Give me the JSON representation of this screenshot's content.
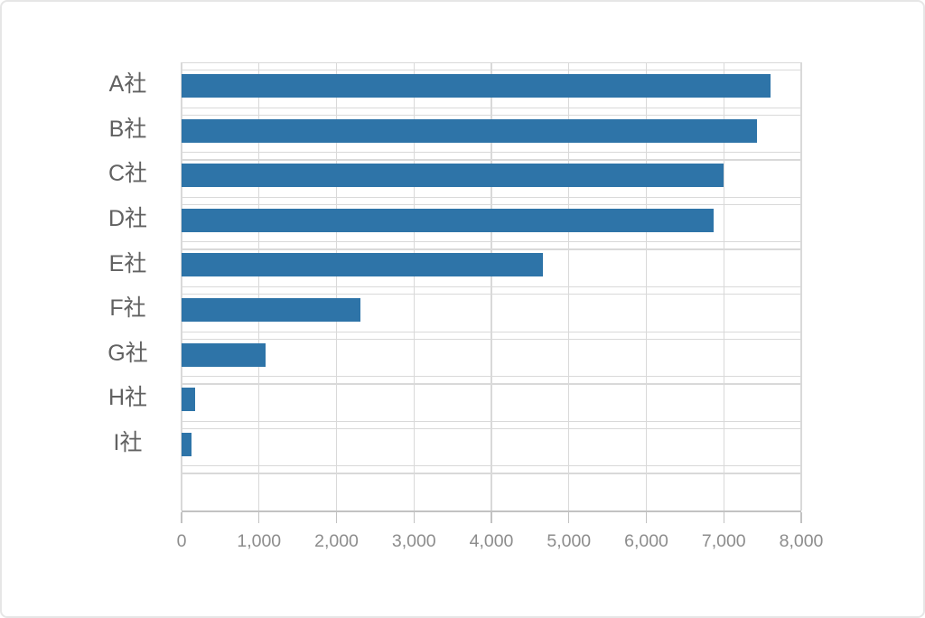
{
  "chart_data": {
    "type": "bar",
    "orientation": "horizontal",
    "title": "",
    "xlabel": "",
    "ylabel": "",
    "categories": [
      "A社",
      "B社",
      "C社",
      "D社",
      "E社",
      "F社",
      "G社",
      "H社",
      "I社"
    ],
    "values": [
      7600,
      7430,
      7000,
      6870,
      4670,
      2310,
      1080,
      180,
      130
    ],
    "xlim": [
      0,
      8000
    ],
    "x_ticks": [
      "0",
      "1,000",
      "2,000",
      "3,000",
      "4,000",
      "5,000",
      "6,000",
      "7,000",
      "8,000"
    ],
    "x_tick_values": [
      0,
      1000,
      2000,
      3000,
      4000,
      5000,
      6000,
      7000,
      8000
    ],
    "trailing_empty_rows": 1,
    "grid": true,
    "legend": false
  },
  "colors": {
    "bar": "#2e74a8",
    "gridline": "#d9d9d9",
    "axis_line": "#c2c2c2",
    "category_label": "#616161",
    "tick_label": "#8c8c8c",
    "background": "#ffffff",
    "frame_border": "#e6e6e6"
  }
}
